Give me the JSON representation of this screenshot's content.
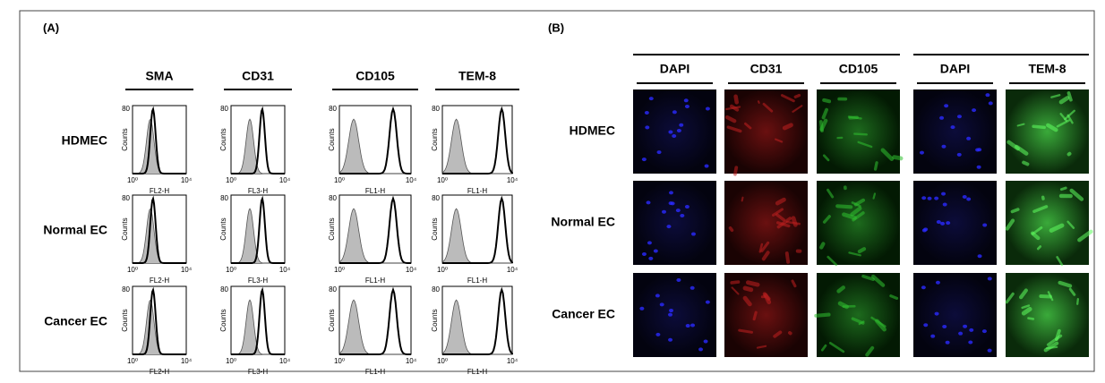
{
  "panel_a": {
    "label": "(A)",
    "columns": [
      "SMA",
      "CD31",
      "CD105",
      "TEM-8"
    ],
    "x_axis_labels": [
      "FL2-H",
      "FL3-H",
      "FL1-H",
      "FL1-H"
    ],
    "y_axis_label": "Counts",
    "y_tick": "80",
    "x_ticks": [
      "10⁰",
      "10⁴"
    ],
    "rows": [
      "HDMEC",
      "Normal EC",
      "Cancer EC"
    ]
  },
  "panel_b": {
    "label": "(B)",
    "column_groups": [
      [
        "DAPI",
        "CD31",
        "CD105"
      ],
      [
        "DAPI",
        "TEM-8"
      ]
    ],
    "rows": [
      "HDMEC",
      "Normal EC",
      "Cancer EC"
    ]
  }
}
